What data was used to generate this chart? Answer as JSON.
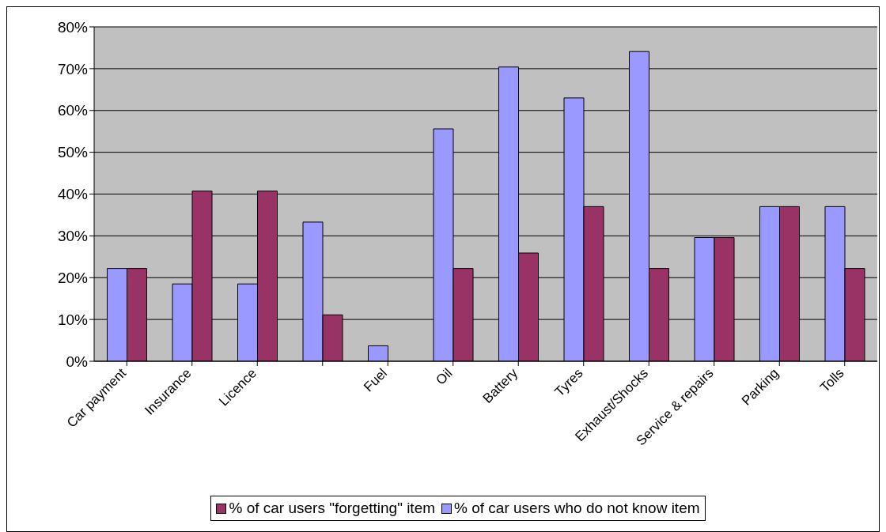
{
  "chart_data": {
    "type": "bar",
    "categories": [
      "Car payment",
      "Insurance",
      "Licence",
      null,
      "Fuel",
      "Oil",
      "Battery",
      "Tyres",
      "Exhaust/Shocks",
      "Service & repairs",
      "Parking",
      "Tolls"
    ],
    "series": [
      {
        "name": "% of car users who do not know item",
        "color": "#9999ff",
        "values": [
          22.2,
          18.5,
          18.5,
          33.3,
          3.7,
          55.6,
          70.4,
          63,
          74.1,
          29.6,
          37,
          37
        ]
      },
      {
        "name": "% of car users \"forgetting\" item",
        "color": "#993366",
        "values": [
          22.2,
          40.7,
          40.7,
          11.1,
          0,
          22.2,
          25.9,
          37,
          22.2,
          29.6,
          37,
          22.2
        ]
      }
    ],
    "ylim": [
      0,
      80
    ],
    "yticks": [
      {
        "value": 0,
        "label": "0%"
      },
      {
        "value": 10,
        "label": "10%"
      },
      {
        "value": 20,
        "label": "20%"
      },
      {
        "value": 30,
        "label": "30%"
      },
      {
        "value": 40,
        "label": "40%"
      },
      {
        "value": 50,
        "label": "50%"
      },
      {
        "value": 60,
        "label": "60%"
      },
      {
        "value": 70,
        "label": "70%"
      },
      {
        "value": 80,
        "label": "80%"
      }
    ],
    "grid": "y",
    "legend": "bottom"
  }
}
